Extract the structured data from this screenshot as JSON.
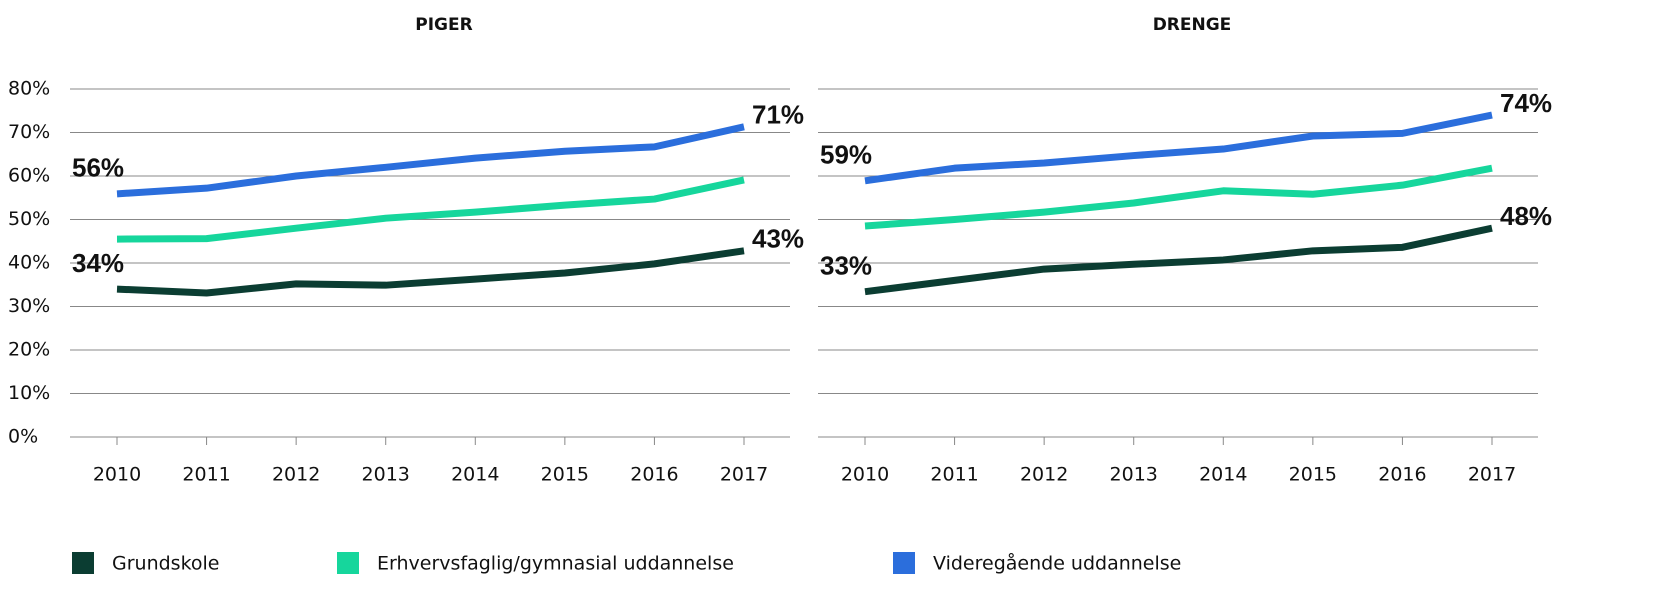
{
  "chart_data": [
    {
      "type": "line",
      "title": "PIGER",
      "categories": [
        "2010",
        "2011",
        "2012",
        "2013",
        "2014",
        "2015",
        "2016",
        "2017"
      ],
      "ylim": [
        0,
        80
      ],
      "yticks": [
        {
          "value": 0,
          "label": "0%"
        },
        {
          "value": 10,
          "label": "10%"
        },
        {
          "value": 20,
          "label": "20%"
        },
        {
          "value": 30,
          "label": "30%"
        },
        {
          "value": 40,
          "label": "40%"
        },
        {
          "value": 50,
          "label": "50%"
        },
        {
          "value": 60,
          "label": "60%"
        },
        {
          "value": 70,
          "label": "70%"
        },
        {
          "value": 80,
          "label": "80%"
        }
      ],
      "grid": true,
      "series": [
        {
          "name": "Grundskole",
          "color": "#0b3d32",
          "values": [
            34.0,
            33.1,
            35.2,
            34.9,
            36.3,
            37.7,
            39.8,
            42.8
          ],
          "value_labels": [
            "34%",
            null,
            null,
            null,
            null,
            null,
            null,
            "43%"
          ]
        },
        {
          "name": "Erhvervsfaglig/gymnasial uddannelse",
          "color": "#16d69c",
          "values": [
            45.5,
            45.6,
            48.0,
            50.3,
            51.7,
            53.3,
            54.7,
            59.1
          ]
        },
        {
          "name": "Videregående uddannelse",
          "color": "#2b6edc",
          "values": [
            55.9,
            57.2,
            60.0,
            62.0,
            64.1,
            65.7,
            66.7,
            71.3
          ],
          "value_labels": [
            "56%",
            null,
            null,
            null,
            null,
            null,
            null,
            "71%"
          ]
        }
      ]
    },
    {
      "type": "line",
      "title": "DRENGE",
      "categories": [
        "2010",
        "2011",
        "2012",
        "2013",
        "2014",
        "2015",
        "2016",
        "2017"
      ],
      "ylim": [
        0,
        80
      ],
      "yticks": [
        0,
        10,
        20,
        30,
        40,
        50,
        60,
        70,
        80
      ],
      "grid": true,
      "series": [
        {
          "name": "Grundskole",
          "color": "#0b3d32",
          "values": [
            33.4,
            36.0,
            38.6,
            39.7,
            40.7,
            42.8,
            43.6,
            48.0
          ],
          "value_labels": [
            "33%",
            null,
            null,
            null,
            null,
            null,
            null,
            "48%"
          ]
        },
        {
          "name": "Erhvervsfaglig/gymnasial uddannelse",
          "color": "#16d69c",
          "values": [
            48.5,
            50.0,
            51.7,
            53.8,
            56.6,
            55.8,
            57.9,
            61.8
          ]
        },
        {
          "name": "Videregående uddannelse",
          "color": "#2b6edc",
          "values": [
            58.9,
            61.8,
            63.0,
            64.7,
            66.2,
            69.2,
            69.8,
            74.0
          ],
          "value_labels": [
            "59%",
            null,
            null,
            null,
            null,
            null,
            null,
            "74%"
          ]
        }
      ]
    }
  ]
}
